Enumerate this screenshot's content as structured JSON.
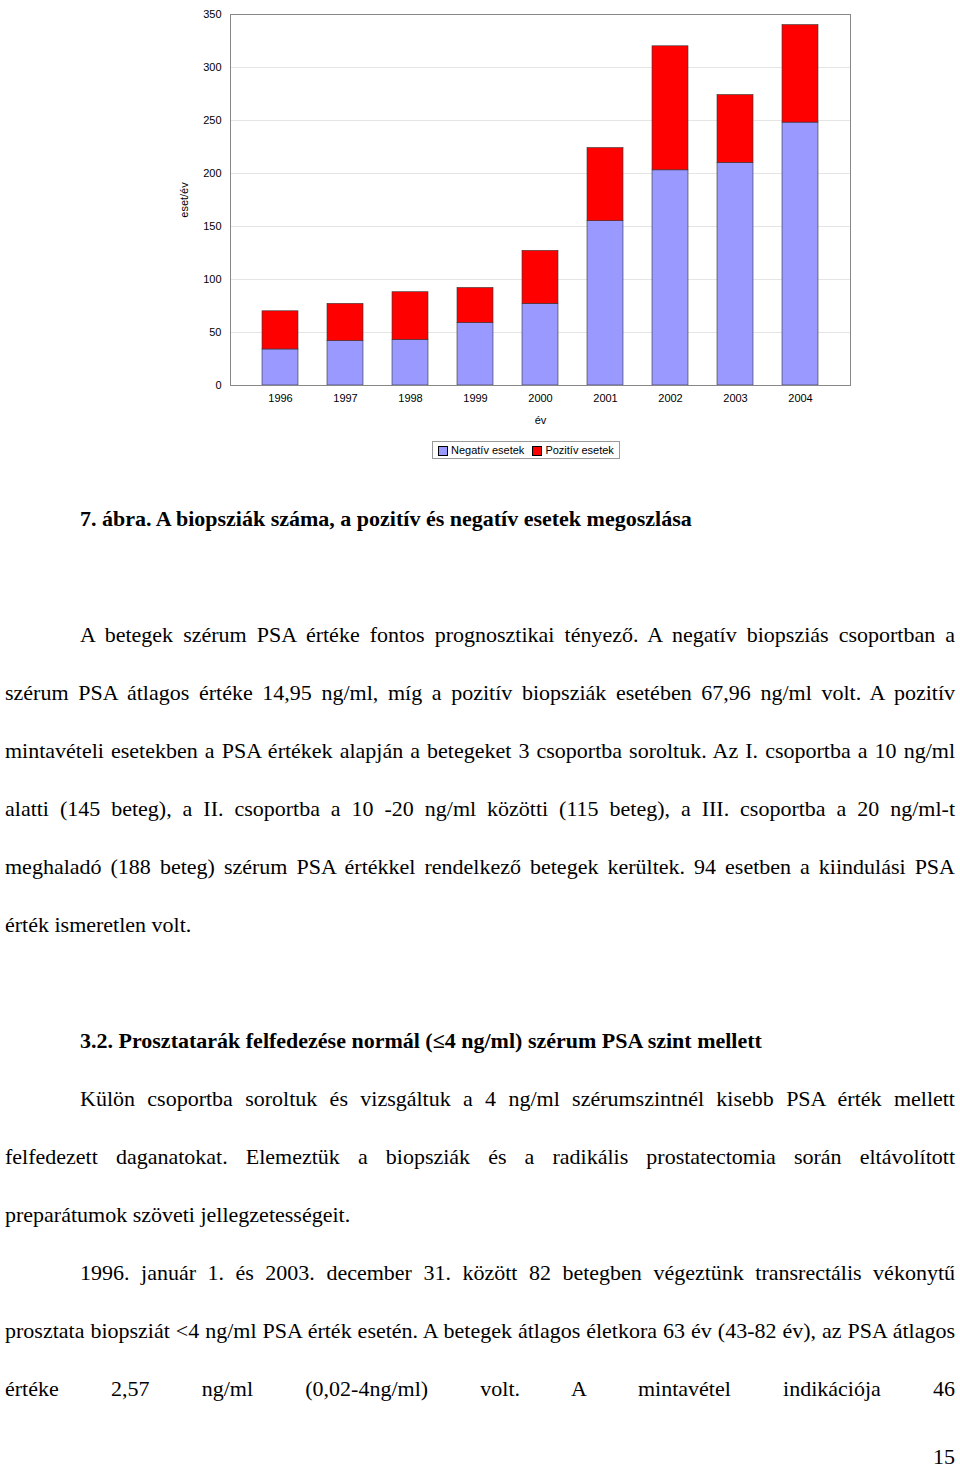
{
  "chart_data": {
    "type": "bar",
    "stacked": true,
    "x_label": "év",
    "y_label": "eset/év",
    "categories": [
      "1996",
      "1997",
      "1998",
      "1999",
      "2000",
      "2001",
      "2002",
      "2003",
      "2004"
    ],
    "series": [
      {
        "name": "Negatív esetek",
        "color": "#9999ff",
        "values": [
          34,
          42,
          43,
          59,
          77,
          155,
          203,
          210,
          248
        ]
      },
      {
        "name": "Pozitív esetek",
        "color": "#ff0000",
        "values": [
          36,
          35,
          45,
          33,
          50,
          69,
          117,
          64,
          92
        ]
      }
    ],
    "ylim": [
      0,
      350
    ],
    "yticks": [
      0,
      50,
      100,
      150,
      200,
      250,
      300,
      350
    ],
    "grid": true,
    "legend": "bottom"
  },
  "document": {
    "caption": "7. ábra. A biopsziák száma, a pozitív és negatív esetek megoszlása",
    "paragraphs": [
      "A betegek szérum PSA értéke fontos prognosztikai tényező. A negatív biopsziás csoportban a szérum PSA átlagos értéke 14,95 ng/ml, míg a pozitív biopsziák esetében 67,96 ng/ml volt. A pozitív mintavételi esetekben a PSA értékek alapján a betegeket 3 csoportba soroltuk. Az I. csoportba a 10 ng/ml alatti (145 beteg), a II. csoportba a 10 -20 ng/ml közötti (115 beteg), a III. csoportba a 20 ng/ml-t meghaladó (188 beteg) szérum PSA értékkel rendelkező betegek kerültek. 94 esetben a kiindulási PSA érték ismeretlen volt."
    ],
    "heading": "3.2. Prosztatarák felfedezése normál (≤4 ng/ml) szérum PSA szint mellett",
    "section_paragraphs": [
      "Külön csoportba soroltuk és vizsgáltuk a 4 ng/ml szérumszintnél kisebb PSA érték mellett felfedezett daganatokat. Elemeztük a biopsziák és a radikális prostatectomia során eltávolított preparátumok szöveti jellegzetességeit.",
      "1996. január 1. és 2003. december 31. között 82 betegben végeztünk transrectális vékonytű prosztata biopsziát <4 ng/ml PSA érték esetén. A betegek átlagos életkora 63 év (43-82 év), az PSA átlagos értéke 2,57 ng/ml (0,02-4ng/ml) volt. A mintavétel indikációja 46"
    ],
    "page_number": "15"
  }
}
